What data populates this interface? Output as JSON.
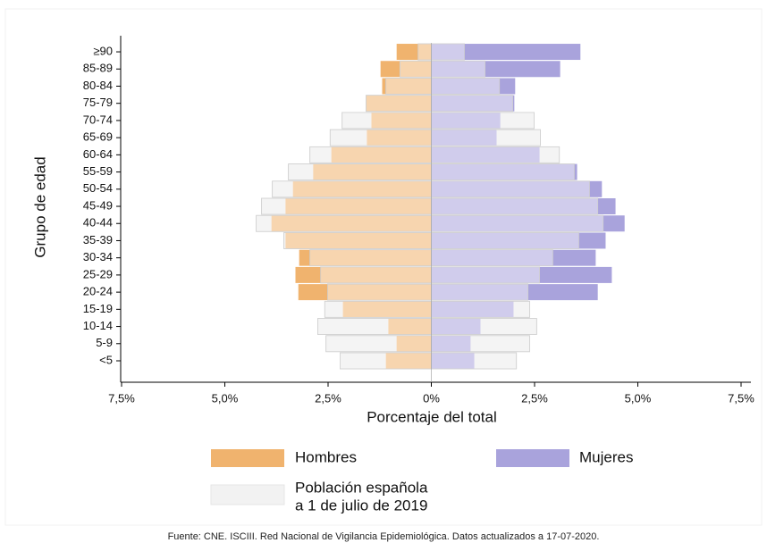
{
  "chart_data": {
    "type": "pyramid",
    "categories": [
      "<5",
      "5-9",
      "10-14",
      "15-19",
      "20-24",
      "25-29",
      "30-34",
      "35-39",
      "40-44",
      "45-49",
      "50-54",
      "55-59",
      "60-64",
      "65-69",
      "70-74",
      "75-79",
      "80-84",
      "85-89",
      "≥90"
    ],
    "series": [
      {
        "name": "Hombres",
        "color": "#f0b36e",
        "values": [
          -1.1,
          -0.84,
          -1.04,
          -2.14,
          -3.22,
          -3.29,
          -3.2,
          -3.53,
          -3.87,
          -3.53,
          -3.35,
          -2.86,
          -2.42,
          -1.56,
          -1.45,
          -1.58,
          -1.19,
          -1.23,
          -0.84
        ]
      },
      {
        "name": "Mujeres",
        "color": "#a9a3dc",
        "values": [
          1.04,
          0.95,
          1.19,
          1.99,
          4.03,
          4.37,
          3.98,
          4.22,
          4.68,
          4.46,
          4.13,
          3.53,
          2.62,
          1.58,
          1.67,
          2.01,
          2.03,
          3.12,
          3.61
        ]
      }
    ],
    "reference": {
      "name": [
        "Población española",
        "a 1 de julio de 2019"
      ],
      "color": "#ebebeb",
      "men": [
        -2.21,
        -2.55,
        -2.75,
        -2.58,
        -2.51,
        -2.68,
        -2.94,
        -3.57,
        -4.24,
        -4.11,
        -3.85,
        -3.46,
        -2.94,
        -2.45,
        -2.16,
        -1.58,
        -1.1,
        -0.76,
        -0.32
      ],
      "women": [
        2.06,
        2.38,
        2.55,
        2.38,
        2.34,
        2.62,
        2.94,
        3.57,
        4.16,
        4.03,
        3.83,
        3.46,
        3.1,
        2.64,
        2.49,
        1.97,
        1.65,
        1.3,
        0.8
      ]
    },
    "xlim": [
      -7.5,
      7.5
    ],
    "xticks": [
      {
        "value": -7.5,
        "label": "7,5%"
      },
      {
        "value": -5,
        "label": "5,0%"
      },
      {
        "value": -2.5,
        "label": "2,5%"
      },
      {
        "value": 0,
        "label": "0%"
      },
      {
        "value": 2.5,
        "label": "2,5%"
      },
      {
        "value": 5,
        "label": "5,0%"
      },
      {
        "value": 7.5,
        "label": "7,5%"
      }
    ],
    "xlabel": "Porcentaje del total",
    "ylabel": "Grupo de edad",
    "source": "Fuente: CNE. ISCIII. Red Nacional de Vigilancia Epidemiológica. Datos actualizados a 17-07-2020."
  }
}
